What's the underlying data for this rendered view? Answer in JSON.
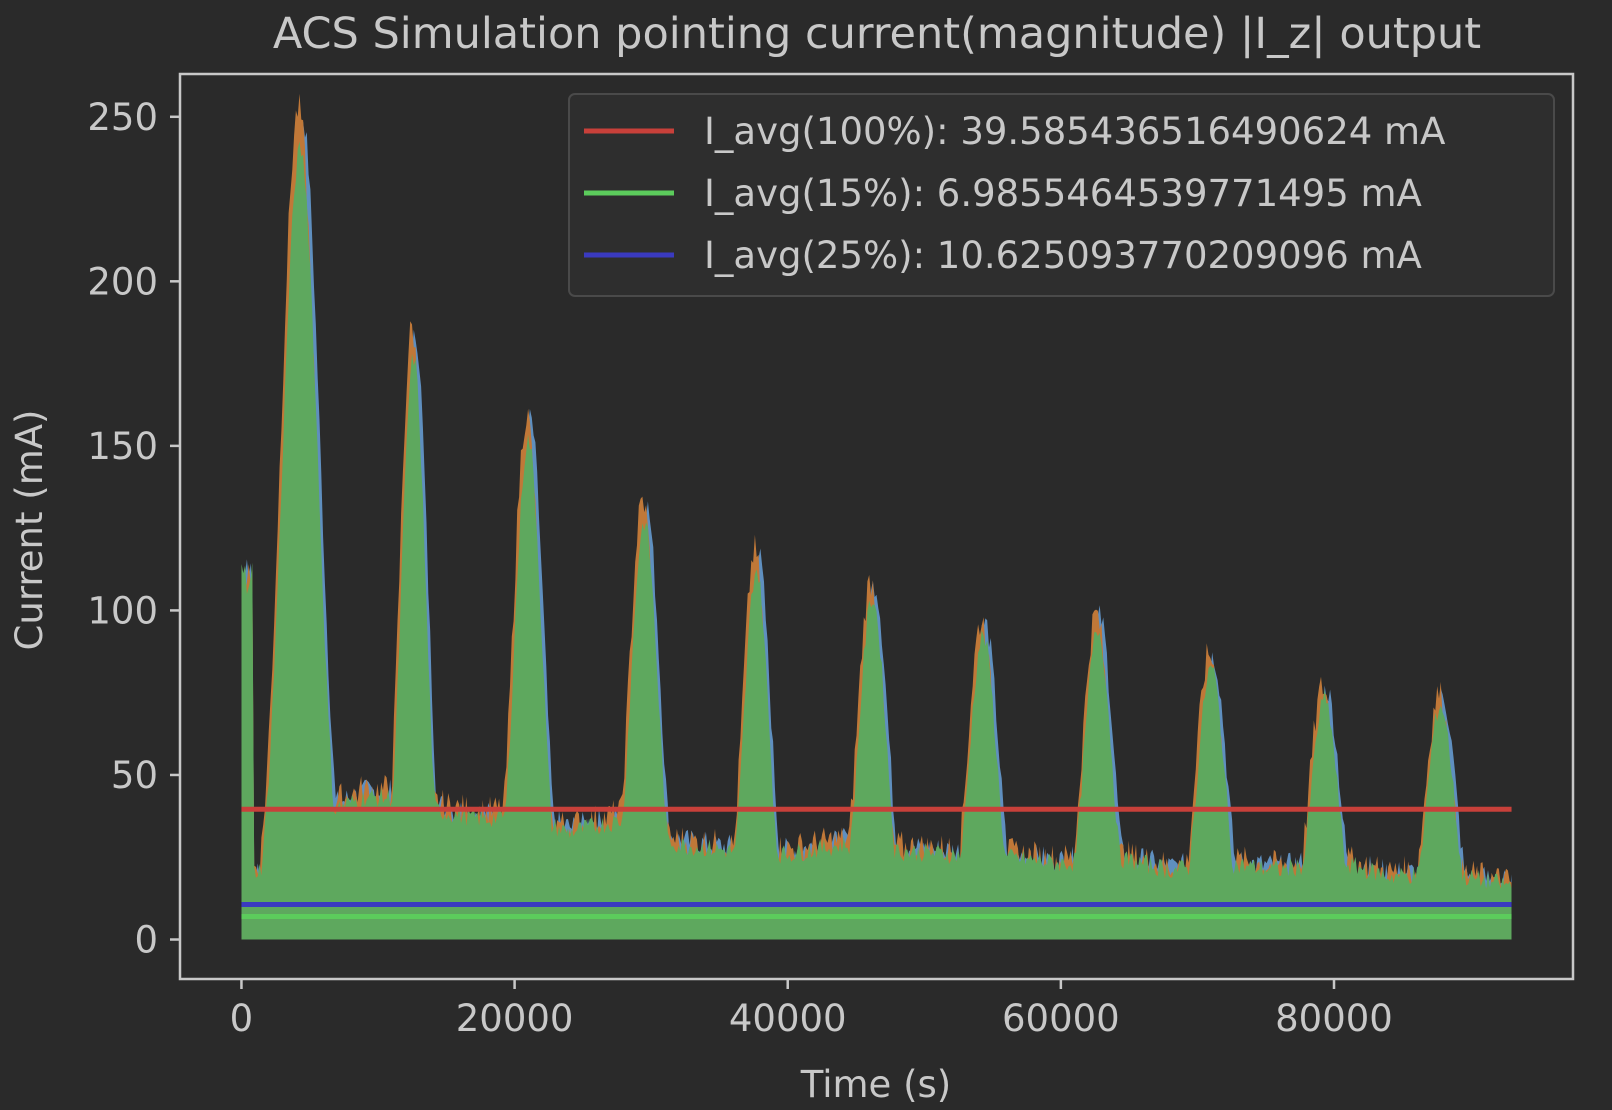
{
  "chart_data": {
    "type": "area",
    "title": "ACS Simulation pointing current(magnitude) |I_z| output",
    "xlabel": "Time (s)",
    "ylabel": "Current (mA)",
    "xlim": [
      -4500,
      97500
    ],
    "ylim": [
      -12,
      263
    ],
    "x_ticks": [
      0,
      20000,
      40000,
      60000,
      80000
    ],
    "y_ticks": [
      0,
      50,
      100,
      150,
      200,
      250
    ],
    "grid": false,
    "legend_position": "top-right",
    "colors": {
      "background": "#2a2a2a",
      "axes_frame": "#c8c8c8",
      "text": "#c8c8c8",
      "series_blue": "#5f8fbf",
      "series_orange": "#c07838",
      "series_green": "#5ea85e",
      "avg_100": "#c8403a",
      "avg_15": "#5ccc5c",
      "avg_25": "#3a3ac0"
    },
    "envelope": {
      "x_end": 93000,
      "floor": [
        [
          0,
          20
        ],
        [
          3000,
          25
        ],
        [
          6000,
          40
        ],
        [
          9000,
          45
        ],
        [
          12000,
          45
        ],
        [
          15000,
          40
        ],
        [
          18000,
          38
        ],
        [
          20000,
          40
        ],
        [
          24000,
          34
        ],
        [
          28000,
          38
        ],
        [
          32000,
          30
        ],
        [
          36000,
          28
        ],
        [
          40000,
          27
        ],
        [
          44000,
          30
        ],
        [
          48000,
          28
        ],
        [
          52000,
          27
        ],
        [
          56000,
          26
        ],
        [
          60000,
          24
        ],
        [
          64000,
          26
        ],
        [
          68000,
          22
        ],
        [
          72000,
          24
        ],
        [
          76000,
          22
        ],
        [
          80000,
          25
        ],
        [
          84000,
          20
        ],
        [
          88000,
          21
        ],
        [
          93000,
          17
        ]
      ],
      "peaks": [
        {
          "center": 4300,
          "height": 250,
          "width": 1300
        },
        {
          "center": 12600,
          "height": 184,
          "width": 900
        },
        {
          "center": 21000,
          "height": 158,
          "width": 1000
        },
        {
          "center": 29500,
          "height": 132,
          "width": 1000
        },
        {
          "center": 37700,
          "height": 117,
          "width": 900
        },
        {
          "center": 46200,
          "height": 108,
          "width": 1000
        },
        {
          "center": 54300,
          "height": 96,
          "width": 1000
        },
        {
          "center": 62700,
          "height": 98,
          "width": 1000
        },
        {
          "center": 71000,
          "height": 86,
          "width": 1000
        },
        {
          "center": 79300,
          "height": 76,
          "width": 1000
        },
        {
          "center": 87800,
          "height": 74,
          "width": 1000
        }
      ]
    },
    "legend": [
      {
        "label": "I_avg(100%): 39.585436516490624 mA",
        "value": 39.585436516490624,
        "color": "#c8403a"
      },
      {
        "label": "I_avg(15%): 6.9855464539771495 mA",
        "value": 6.9855464539771495,
        "color": "#5ccc5c"
      },
      {
        "label": "I_avg(25%): 10.625093770209096 mA",
        "value": 10.625093770209096,
        "color": "#3a3ac0"
      }
    ]
  }
}
